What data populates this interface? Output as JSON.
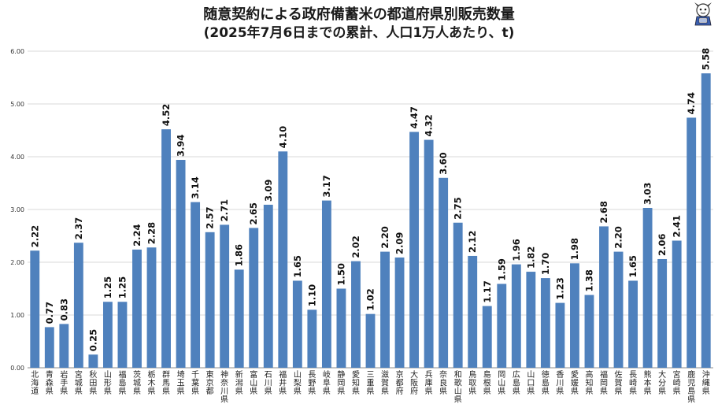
{
  "chart_data": {
    "type": "bar",
    "title": "随意契約による政府備蓄米の都道府県別販売数量",
    "subtitle": "(2025年7月6日までの累計、人口1万人あたり、t)",
    "xlabel": "",
    "ylabel": "",
    "ylim": [
      0,
      6
    ],
    "yticks": [
      "0.00",
      "1.00",
      "2.00",
      "3.00",
      "4.00",
      "5.00",
      "6.00"
    ],
    "grid": true,
    "bar_color": "#4f81bd",
    "categories": [
      "北海道",
      "青森県",
      "岩手県",
      "宮城県",
      "秋田県",
      "山形県",
      "福島県",
      "茨城県",
      "栃木県",
      "群馬県",
      "埼玉県",
      "千葉県",
      "東京都",
      "神奈川県",
      "新潟県",
      "富山県",
      "石川県",
      "福井県",
      "山梨県",
      "長野県",
      "岐阜県",
      "静岡県",
      "愛知県",
      "三重県",
      "滋賀県",
      "京都府",
      "大阪府",
      "兵庫県",
      "奈良県",
      "和歌山県",
      "鳥取県",
      "島根県",
      "岡山県",
      "広島県",
      "山口県",
      "徳島県",
      "香川県",
      "愛媛県",
      "高知県",
      "福岡県",
      "佐賀県",
      "長崎県",
      "熊本県",
      "大分県",
      "宮崎県",
      "鹿児島県",
      "沖縄県"
    ],
    "values": [
      2.22,
      0.77,
      0.83,
      2.37,
      0.25,
      1.25,
      1.25,
      2.24,
      2.28,
      4.52,
      3.94,
      3.14,
      2.57,
      2.71,
      1.86,
      2.65,
      3.09,
      4.1,
      1.65,
      1.1,
      3.17,
      1.5,
      2.02,
      1.02,
      2.2,
      2.09,
      4.47,
      4.32,
      3.6,
      2.75,
      2.12,
      1.17,
      1.59,
      1.96,
      1.82,
      1.7,
      1.23,
      1.98,
      1.38,
      2.68,
      2.2,
      1.65,
      3.03,
      2.06,
      2.41,
      4.74,
      5.58
    ],
    "data_labels": [
      "2.22",
      "0.77",
      "0.83",
      "2.37",
      "0.25",
      "1.25",
      "1.25",
      "2.24",
      "2.28",
      "4.52",
      "3.94",
      "3.14",
      "2.57",
      "2.71",
      "1.86",
      "2.65",
      "3.09",
      "4.10",
      "1.65",
      "1.10",
      "3.17",
      "1.50",
      "2.02",
      "1.02",
      "2.20",
      "2.09",
      "4.47",
      "4.32",
      "3.60",
      "2.75",
      "2.12",
      "1.17",
      "1.59",
      "1.96",
      "1.82",
      "1.70",
      "1.23",
      "1.98",
      "1.38",
      "2.68",
      "2.20",
      "1.65",
      "3.03",
      "2.06",
      "2.41",
      "4.74",
      "5.58"
    ]
  }
}
